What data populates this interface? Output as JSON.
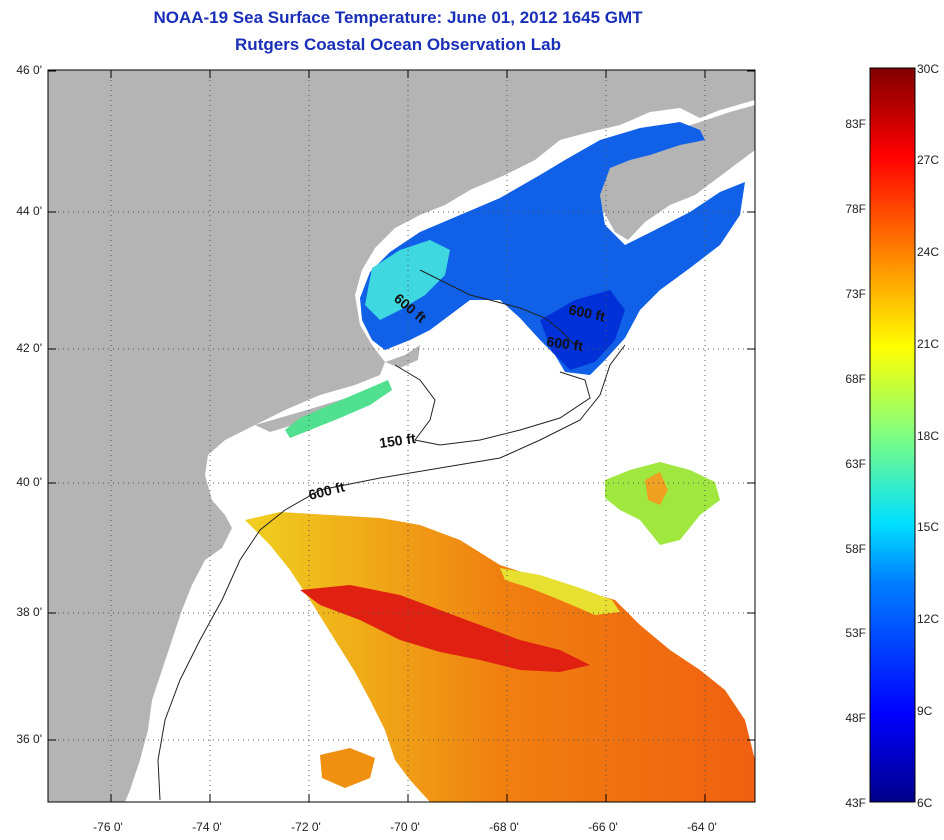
{
  "title": "NOAA-19 Sea Surface Temperature:  June 01, 2012 1645 GMT",
  "subtitle": "Rutgers Coastal Ocean Observation Lab",
  "latitude_labels": [
    "46 0'",
    "44 0'",
    "42 0'",
    "40 0'",
    "38 0'",
    "36 0'"
  ],
  "longitude_labels": [
    "-76 0'",
    "-74 0'",
    "-72 0'",
    "-70 0'",
    "-68 0'",
    "-66 0'",
    "-64 0'"
  ],
  "depth_labels": {
    "d1": "600 ft",
    "d2": "600 ft",
    "d3": "600 ft",
    "d4": "150 ft",
    "d5": "600 ft"
  },
  "colorbar": {
    "fahrenheit": [
      "83F",
      "78F",
      "73F",
      "68F",
      "63F",
      "58F",
      "53F",
      "48F",
      "43F"
    ],
    "celsius": [
      "30C",
      "27C",
      "24C",
      "21C",
      "18C",
      "15C",
      "12C",
      "9C",
      "6C"
    ]
  },
  "colors": {
    "land": "#b4b4b4",
    "title": "#1a2fb8"
  }
}
